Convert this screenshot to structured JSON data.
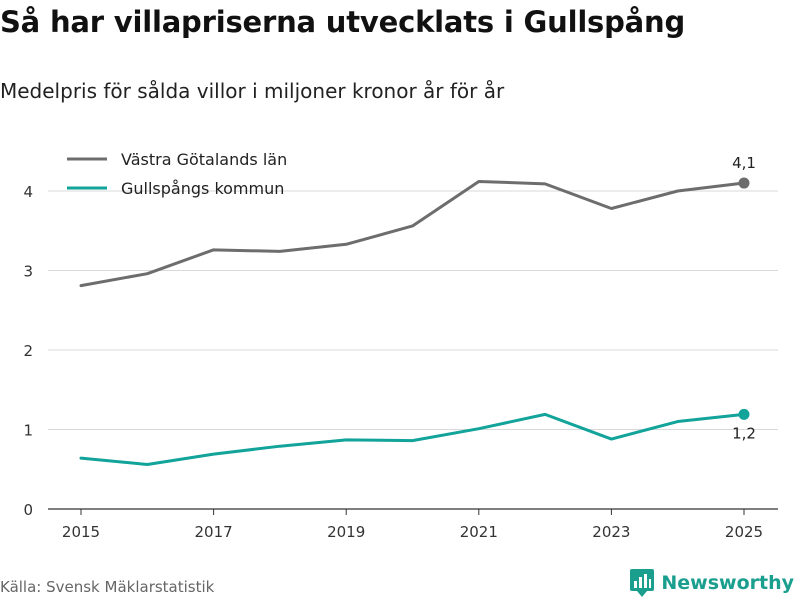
{
  "title": "Så har villapriserna utvecklats i Gullspång",
  "subtitle": "Medelpris för sålda villor i miljoner kronor år för år",
  "source": "Källa: Svensk Mäklarstatistik",
  "brand": "Newsworthy",
  "colors": {
    "series1": "#6d6d6d",
    "series2": "#12a39a",
    "grid": "#d9d9d9",
    "brand": "#1a9e8e"
  },
  "chart_data": {
    "type": "line",
    "x": [
      2015,
      2016,
      2017,
      2018,
      2019,
      2020,
      2021,
      2022,
      2023,
      2024,
      2025
    ],
    "xticks": [
      "2015",
      "2017",
      "2019",
      "2021",
      "2023",
      "2025"
    ],
    "yticks": [
      "0",
      "1",
      "2",
      "3",
      "4"
    ],
    "ylim": [
      0,
      4.3
    ],
    "legend_position": "top-left",
    "series": [
      {
        "name": "Västra Götalands län",
        "values": [
          2.81,
          2.96,
          3.26,
          3.24,
          3.33,
          3.56,
          4.12,
          4.09,
          3.78,
          4.0,
          4.1
        ],
        "end_label": "4,1"
      },
      {
        "name": "Gullspångs kommun",
        "values": [
          0.64,
          0.56,
          0.69,
          0.79,
          0.87,
          0.86,
          1.01,
          1.19,
          0.88,
          1.1,
          1.19
        ],
        "end_label": "1,2"
      }
    ]
  }
}
